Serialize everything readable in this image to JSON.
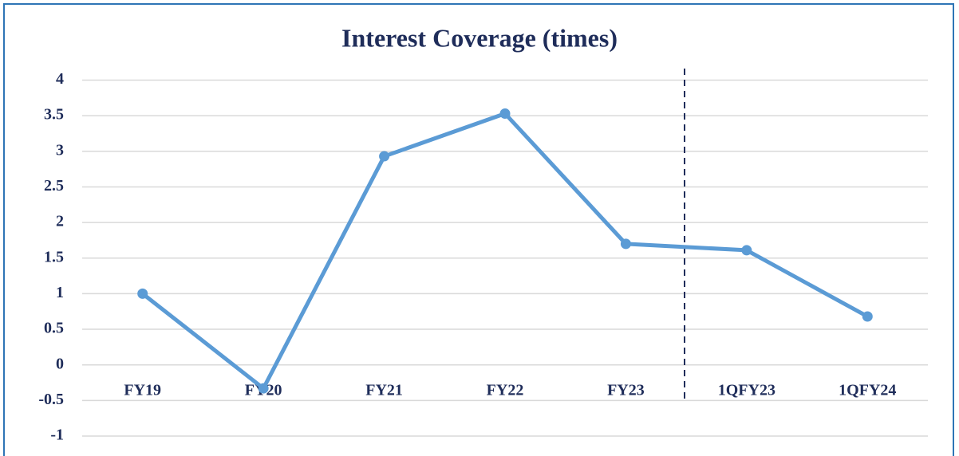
{
  "chart_data": {
    "type": "line",
    "title": "Interest Coverage (times)",
    "categories": [
      "FY19",
      "FY20",
      "FY21",
      "FY22",
      "FY23",
      "1QFY23",
      "1QFY24"
    ],
    "values": [
      1.0,
      -0.33,
      2.93,
      3.53,
      1.7,
      1.61,
      0.68
    ],
    "color": "#5b9bd5",
    "ylim": [
      -1,
      4
    ],
    "yticks": [
      -1,
      -0.5,
      0,
      0.5,
      1,
      1.5,
      2,
      2.5,
      3,
      3.5,
      4
    ],
    "grid": true
  }
}
